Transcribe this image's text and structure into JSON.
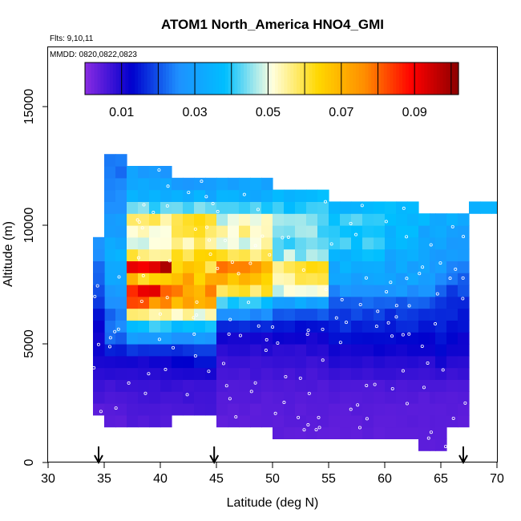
{
  "chart_data": {
    "type": "heatmap",
    "title": "ATOM1 North_America HNO4_GMI",
    "notes": [
      "Flts: 9,10,11",
      "MMDD: 0820,0822,0823"
    ],
    "xlabel": "Latitude (deg N)",
    "ylabel": "Altitude (m)",
    "xlim": [
      30,
      70
    ],
    "ylim": [
      0,
      17500
    ],
    "xticks": [
      "30",
      "35",
      "40",
      "45",
      "50",
      "55",
      "60",
      "65",
      "70"
    ],
    "yticks": [
      "0",
      "5000",
      "10000",
      "15000"
    ],
    "colorbar": {
      "ticks": [
        "0.01",
        "0.03",
        "0.05",
        "0.07",
        "0.09"
      ],
      "range": [
        0,
        0.102
      ],
      "colors": [
        "#8a2be2",
        "#0000cd",
        "#1e90ff",
        "#00bfff",
        "#ffffe0",
        "#ffd700",
        "#ff8c00",
        "#ff0000",
        "#8b0000"
      ]
    },
    "grid": false,
    "legend": "colorbar-top",
    "arrows_at_latitude": [
      34.5,
      44.8,
      67.0
    ],
    "columns": [
      {
        "lat0": 35,
        "lat1": 37,
        "alt0": 1500,
        "alt1": 13000,
        "profile": [
          [
            1500,
            0.004
          ],
          [
            3000,
            0.006
          ],
          [
            4500,
            0.012
          ],
          [
            5500,
            0.025
          ],
          [
            6500,
            0.022
          ],
          [
            7500,
            0.03
          ],
          [
            8500,
            0.035
          ],
          [
            10000,
            0.03
          ],
          [
            11500,
            0.025
          ],
          [
            13000,
            0.022
          ]
        ]
      },
      {
        "lat0": 34,
        "lat1": 35,
        "alt0": 2000,
        "alt1": 9500,
        "profile": [
          [
            2000,
            0.004
          ],
          [
            4000,
            0.01
          ],
          [
            5500,
            0.012
          ],
          [
            7000,
            0.018
          ],
          [
            8500,
            0.025
          ],
          [
            9500,
            0.028
          ]
        ]
      },
      {
        "lat0": 37,
        "lat1": 41,
        "alt0": 1500,
        "alt1": 12500,
        "profile": [
          [
            1500,
            0.005
          ],
          [
            3000,
            0.007
          ],
          [
            4500,
            0.012
          ],
          [
            5200,
            0.028
          ],
          [
            6000,
            0.045
          ],
          [
            6800,
            0.08
          ],
          [
            7400,
            0.088
          ],
          [
            8000,
            0.05
          ],
          [
            8200,
            0.095
          ],
          [
            8800,
            0.055
          ],
          [
            9500,
            0.045
          ],
          [
            10200,
            0.06
          ],
          [
            11000,
            0.035
          ],
          [
            12500,
            0.028
          ]
        ]
      },
      {
        "lat0": 41,
        "lat1": 45,
        "alt0": 2000,
        "alt1": 12000,
        "profile": [
          [
            2000,
            0.006
          ],
          [
            3500,
            0.008
          ],
          [
            4800,
            0.018
          ],
          [
            5800,
            0.04
          ],
          [
            6800,
            0.07
          ],
          [
            7400,
            0.075
          ],
          [
            8000,
            0.065
          ],
          [
            8500,
            0.062
          ],
          [
            9300,
            0.055
          ],
          [
            10200,
            0.065
          ],
          [
            11000,
            0.035
          ],
          [
            12000,
            0.028
          ]
        ]
      },
      {
        "lat0": 45,
        "lat1": 50,
        "alt0": 1500,
        "alt1": 12000,
        "profile": [
          [
            1500,
            0.004
          ],
          [
            3000,
            0.005
          ],
          [
            4500,
            0.008
          ],
          [
            5500,
            0.012
          ],
          [
            6500,
            0.03
          ],
          [
            7400,
            0.065
          ],
          [
            8200,
            0.075
          ],
          [
            9000,
            0.05
          ],
          [
            10000,
            0.055
          ],
          [
            11000,
            0.035
          ],
          [
            12000,
            0.03
          ]
        ]
      },
      {
        "lat0": 50,
        "lat1": 55,
        "alt0": 1000,
        "alt1": 11500,
        "profile": [
          [
            1000,
            0.004
          ],
          [
            3000,
            0.005
          ],
          [
            4500,
            0.008
          ],
          [
            5500,
            0.012
          ],
          [
            6500,
            0.022
          ],
          [
            7400,
            0.055
          ],
          [
            8200,
            0.06
          ],
          [
            9000,
            0.04
          ],
          [
            10000,
            0.045
          ],
          [
            11500,
            0.035
          ]
        ]
      },
      {
        "lat0": 55,
        "lat1": 60,
        "alt0": 1000,
        "alt1": 11000,
        "profile": [
          [
            1000,
            0.004
          ],
          [
            3000,
            0.005
          ],
          [
            4500,
            0.01
          ],
          [
            5500,
            0.015
          ],
          [
            6500,
            0.02
          ],
          [
            7500,
            0.028
          ],
          [
            8500,
            0.035
          ],
          [
            9500,
            0.042
          ],
          [
            10500,
            0.04
          ],
          [
            11000,
            0.035
          ]
        ]
      },
      {
        "lat0": 60,
        "lat1": 63,
        "alt0": 1000,
        "alt1": 11000,
        "profile": [
          [
            1000,
            0.004
          ],
          [
            3000,
            0.005
          ],
          [
            4500,
            0.01
          ],
          [
            5500,
            0.015
          ],
          [
            6500,
            0.018
          ],
          [
            7500,
            0.03
          ],
          [
            8500,
            0.032
          ],
          [
            9500,
            0.035
          ],
          [
            10500,
            0.038
          ],
          [
            11000,
            0.035
          ]
        ]
      },
      {
        "lat0": 63,
        "lat1": 64.5,
        "alt0": 500,
        "alt1": 10500,
        "profile": [
          [
            500,
            0.004
          ],
          [
            3000,
            0.005
          ],
          [
            4500,
            0.01
          ],
          [
            5500,
            0.014
          ],
          [
            6500,
            0.018
          ],
          [
            7500,
            0.028
          ],
          [
            8500,
            0.03
          ],
          [
            9500,
            0.032
          ],
          [
            10500,
            0.035
          ]
        ]
      },
      {
        "lat0": 64.5,
        "lat1": 65.5,
        "alt0": 500,
        "alt1": 10500,
        "profile": [
          [
            500,
            0.004
          ],
          [
            3000,
            0.005
          ],
          [
            4500,
            0.012
          ],
          [
            5500,
            0.015
          ],
          [
            6500,
            0.016
          ],
          [
            7500,
            0.025
          ],
          [
            8500,
            0.03
          ],
          [
            9500,
            0.03
          ],
          [
            10500,
            0.035
          ]
        ]
      },
      {
        "lat0": 65.5,
        "lat1": 67.5,
        "alt0": 1500,
        "alt1": 10500,
        "profile": [
          [
            1500,
            0.004
          ],
          [
            3000,
            0.005
          ],
          [
            4500,
            0.01
          ],
          [
            5500,
            0.013
          ],
          [
            6500,
            0.016
          ],
          [
            7500,
            0.02
          ],
          [
            8500,
            0.028
          ],
          [
            9500,
            0.03
          ],
          [
            10500,
            0.035
          ]
        ]
      },
      {
        "lat0": 67.5,
        "lat1": 70,
        "alt0": 10500,
        "alt1": 11000,
        "profile": [
          [
            10500,
            0.035
          ],
          [
            11000,
            0.035
          ]
        ]
      }
    ]
  }
}
